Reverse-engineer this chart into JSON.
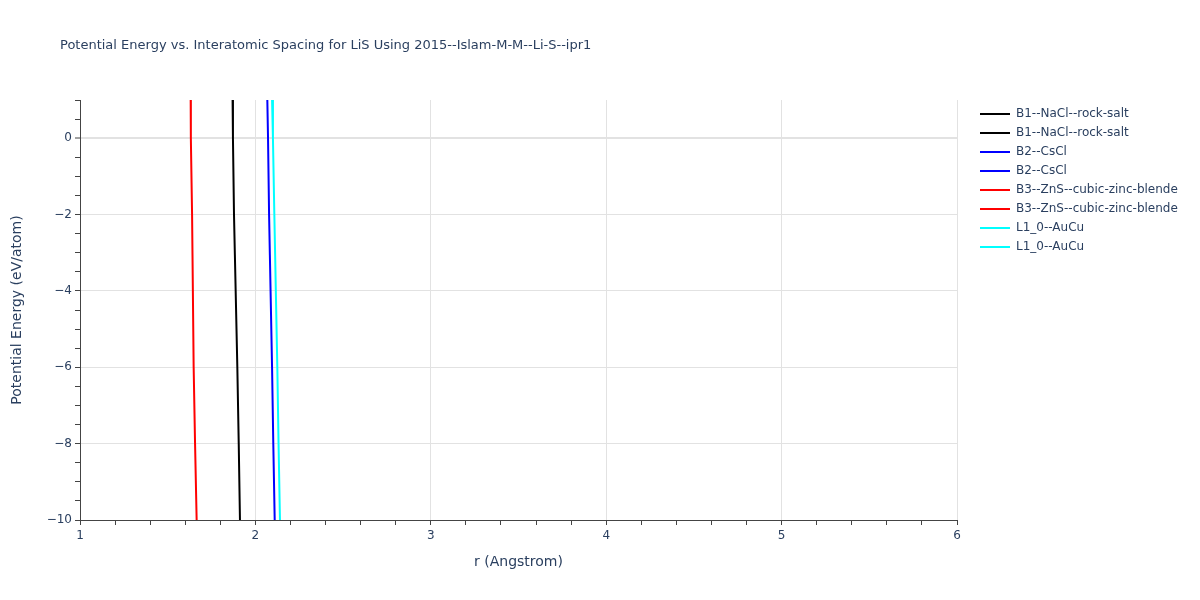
{
  "chart_data": {
    "type": "line",
    "title": "Potential Energy vs. Interatomic Spacing for LiS Using 2015--Islam-M-M--Li-S--ipr1",
    "xlabel": "r (Angstrom)",
    "ylabel": "Potential Energy (eV/atom)",
    "xlim": [
      1,
      6
    ],
    "ylim": [
      -10,
      1
    ],
    "xticks": [
      1,
      {
        "value": 1.2,
        "label": null
      },
      {
        "value": 1.4,
        "label": null
      },
      {
        "value": 1.6,
        "label": null
      },
      {
        "value": 1.8,
        "label": null
      },
      2,
      {
        "value": 2.2,
        "label": null
      },
      {
        "value": 2.4,
        "label": null
      },
      {
        "value": 2.6,
        "label": null
      },
      {
        "value": 2.8,
        "label": null
      },
      3,
      {
        "value": 3.2,
        "label": null
      },
      {
        "value": 3.4,
        "label": null
      },
      {
        "value": 3.6,
        "label": null
      },
      {
        "value": 3.8,
        "label": null
      },
      4,
      {
        "value": 4.2,
        "label": null
      },
      {
        "value": 4.4,
        "label": null
      },
      {
        "value": 4.6,
        "label": null
      },
      {
        "value": 4.8,
        "label": null
      },
      5,
      {
        "value": 5.2,
        "label": null
      },
      {
        "value": 5.4,
        "label": null
      },
      {
        "value": 5.6,
        "label": null
      },
      {
        "value": 5.8,
        "label": null
      },
      6
    ],
    "yticks": [
      {
        "value": -10,
        "label": "−10"
      },
      {
        "value": -9.5,
        "label": null
      },
      {
        "value": -9,
        "label": null
      },
      {
        "value": -8.5,
        "label": null
      },
      {
        "value": -8,
        "label": "−8"
      },
      {
        "value": -7.5,
        "label": null
      },
      {
        "value": -7,
        "label": null
      },
      {
        "value": -6.5,
        "label": null
      },
      {
        "value": -6,
        "label": "−6"
      },
      {
        "value": -5.5,
        "label": null
      },
      {
        "value": -5,
        "label": null
      },
      {
        "value": -4.5,
        "label": null
      },
      {
        "value": -4,
        "label": "−4"
      },
      {
        "value": -3.5,
        "label": null
      },
      {
        "value": -3,
        "label": null
      },
      {
        "value": -2.5,
        "label": null
      },
      {
        "value": -2,
        "label": "−2"
      },
      {
        "value": -1.5,
        "label": null
      },
      {
        "value": -1,
        "label": null
      },
      {
        "value": -0.5,
        "label": null
      },
      0,
      {
        "value": 0.5,
        "label": null
      },
      {
        "value": 1,
        "label": null
      }
    ],
    "grid": true,
    "legend": "top right",
    "series": [
      {
        "name": "B1--NaCl--rock-salt",
        "color": "#000000",
        "x": [
          1.87,
          1.872,
          1.878,
          1.897,
          1.905,
          1.912
        ],
        "values": [
          1,
          0,
          -2,
          -6,
          -8,
          -10
        ]
      },
      {
        "name": "B1--NaCl--rock-salt",
        "color": "#000000"
      },
      {
        "name": "B2--CsCl",
        "color": "#0000ff",
        "x": [
          2.068,
          2.072,
          2.078,
          2.095,
          2.102,
          2.11
        ],
        "values": [
          1,
          0,
          -2,
          -6,
          -8,
          -10
        ]
      },
      {
        "name": "B2--CsCl",
        "color": "#0000ff"
      },
      {
        "name": "B3--ZnS--cubic-zinc-blende",
        "color": "#ff0000",
        "x": [
          1.631,
          1.632,
          1.639,
          1.648,
          1.656,
          1.665
        ],
        "values": [
          1,
          0,
          -2,
          -6,
          -8,
          -10
        ]
      },
      {
        "name": "B3--ZnS--cubic-zinc-blende",
        "color": "#ff0000"
      },
      {
        "name": "L1_0--AuCu",
        "color": "#00ffff",
        "x": [
          2.095,
          2.1,
          2.108,
          2.125,
          2.132,
          2.14
        ],
        "values": [
          1,
          0,
          -2,
          -6,
          -8,
          -10
        ]
      },
      {
        "name": "L1_0--AuCu",
        "color": "#00ffff"
      }
    ]
  }
}
